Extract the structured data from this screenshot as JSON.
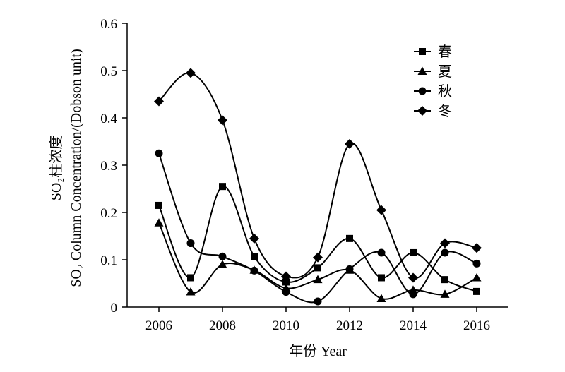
{
  "chart_data": {
    "type": "line",
    "title": "",
    "xlabel": "年份 Year",
    "ylabel_line1": "SO₂柱浓度",
    "ylabel_line2": "SO₂ Column Concentration/(Dobson unit)",
    "x": [
      2006,
      2007,
      2008,
      2009,
      2010,
      2011,
      2012,
      2013,
      2014,
      2015,
      2016
    ],
    "xlim": [
      2005.0,
      2017.0
    ],
    "ylim": [
      0,
      0.6
    ],
    "x_ticks": [
      "2006",
      "2008",
      "2010",
      "2012",
      "2014",
      "2016"
    ],
    "y_ticks": [
      "0",
      "0.1",
      "0.2",
      "0.3",
      "0.4",
      "0.5",
      "0.6"
    ],
    "grid": false,
    "legend_position": "top-right",
    "series": [
      {
        "name": "春",
        "marker": "square",
        "values": [
          0.215,
          0.062,
          0.255,
          0.107,
          0.053,
          0.083,
          0.145,
          0.062,
          0.115,
          0.058,
          0.033
        ]
      },
      {
        "name": "夏",
        "marker": "triangle",
        "values": [
          0.178,
          0.032,
          0.09,
          0.078,
          0.04,
          0.058,
          0.078,
          0.018,
          0.036,
          0.027,
          0.062
        ]
      },
      {
        "name": "秋",
        "marker": "circle",
        "values": [
          0.325,
          0.135,
          0.107,
          0.077,
          0.032,
          0.012,
          0.08,
          0.115,
          0.027,
          0.115,
          0.092
        ]
      },
      {
        "name": "冬",
        "marker": "diamond",
        "values": [
          0.435,
          0.495,
          0.395,
          0.145,
          0.065,
          0.105,
          0.345,
          0.205,
          0.062,
          0.135,
          0.125
        ]
      }
    ]
  }
}
